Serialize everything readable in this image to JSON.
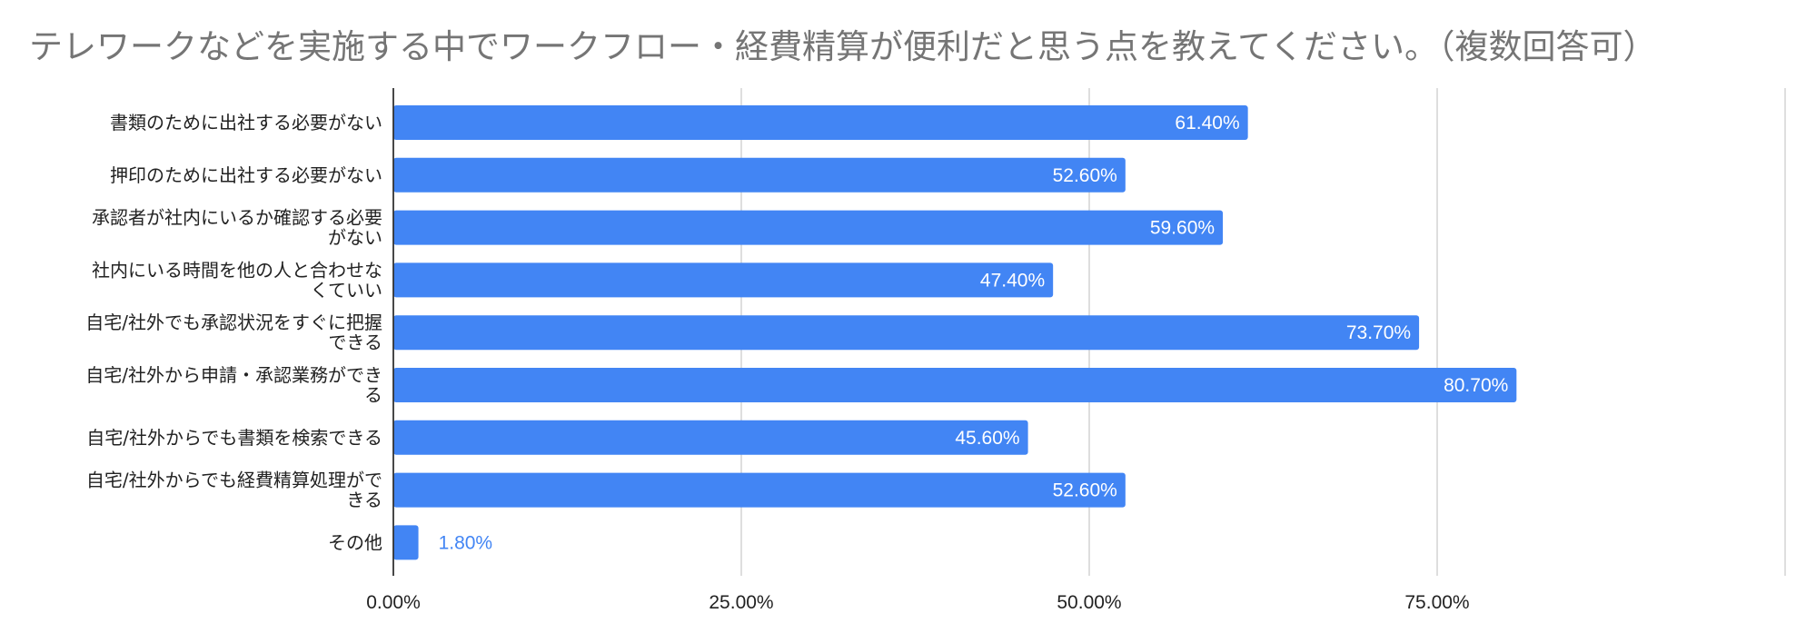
{
  "chart_data": {
    "type": "bar",
    "orientation": "horizontal",
    "title": "テレワークなどを実施する中でワークフロー・経費精算が便利だと思う点を教えてください。（複数回答可）",
    "categories": [
      [
        "書類のために出社する必要がない"
      ],
      [
        "押印のために出社する必要がない"
      ],
      [
        "承認者が社内にいるか確認する必要",
        "がない"
      ],
      [
        "社内にいる時間を他の人と合わせな",
        "くていい"
      ],
      [
        "自宅/社外でも承認状況をすぐに把握",
        "できる"
      ],
      [
        "自宅/社外から申請・承認業務ができ",
        "る"
      ],
      [
        "自宅/社外からでも書類を検索できる"
      ],
      [
        "自宅/社外からでも経費精算処理がで",
        "きる"
      ],
      [
        "その他"
      ]
    ],
    "values": [
      61.4,
      52.6,
      59.6,
      47.4,
      73.7,
      80.7,
      45.6,
      52.6,
      1.8
    ],
    "data_labels": [
      "61.40%",
      "52.60%",
      "59.60%",
      "47.40%",
      "73.70%",
      "80.70%",
      "45.60%",
      "52.60%",
      "1.80%"
    ],
    "xlim": [
      0,
      100
    ],
    "x_ticks": [
      0,
      25,
      50,
      75
    ],
    "x_tick_labels": [
      "0.00%",
      "25.00%",
      "50.00%",
      "75.00%"
    ],
    "grid": true,
    "legend": "none",
    "bar_color": "#4285f4",
    "gridline_color": "#cccccc",
    "axis_color": "#333333"
  }
}
